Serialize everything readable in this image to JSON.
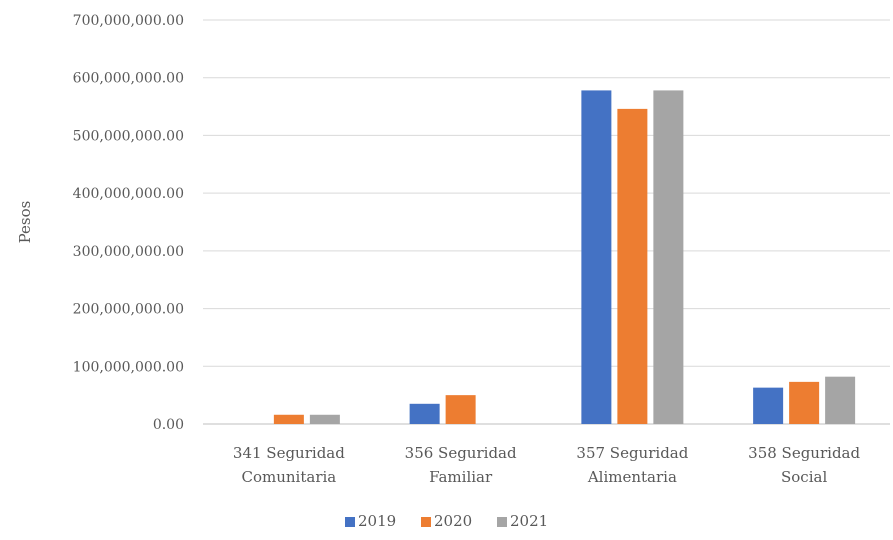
{
  "chart_data": {
    "type": "bar",
    "title": "",
    "xlabel": "",
    "ylabel": "Pesos",
    "ylim": [
      0,
      700000000
    ],
    "yticks": [
      0,
      100000000,
      200000000,
      300000000,
      400000000,
      500000000,
      600000000,
      700000000
    ],
    "ytick_labels": [
      "0.00",
      "100,000,000.00",
      "200,000,000.00",
      "300,000,000.00",
      "400,000,000.00",
      "500,000,000.00",
      "600,000,000.00",
      "700,000,000.00"
    ],
    "categories": [
      [
        "341 Seguridad",
        "Comunitaria"
      ],
      [
        "356 Seguridad",
        "Familiar"
      ],
      [
        "357 Seguridad",
        "Alimentaria"
      ],
      [
        "358 Seguridad",
        "Social"
      ]
    ],
    "series": [
      {
        "name": "2019",
        "color": "#4472c4",
        "values": [
          0,
          35000000,
          578000000,
          63000000
        ]
      },
      {
        "name": "2020",
        "color": "#ed7d31",
        "values": [
          16000000,
          50000000,
          546000000,
          73000000
        ]
      },
      {
        "name": "2021",
        "color": "#a5a5a5",
        "values": [
          16000000,
          0,
          578000000,
          82000000
        ]
      }
    ],
    "grid": true,
    "legend_position": "bottom"
  }
}
